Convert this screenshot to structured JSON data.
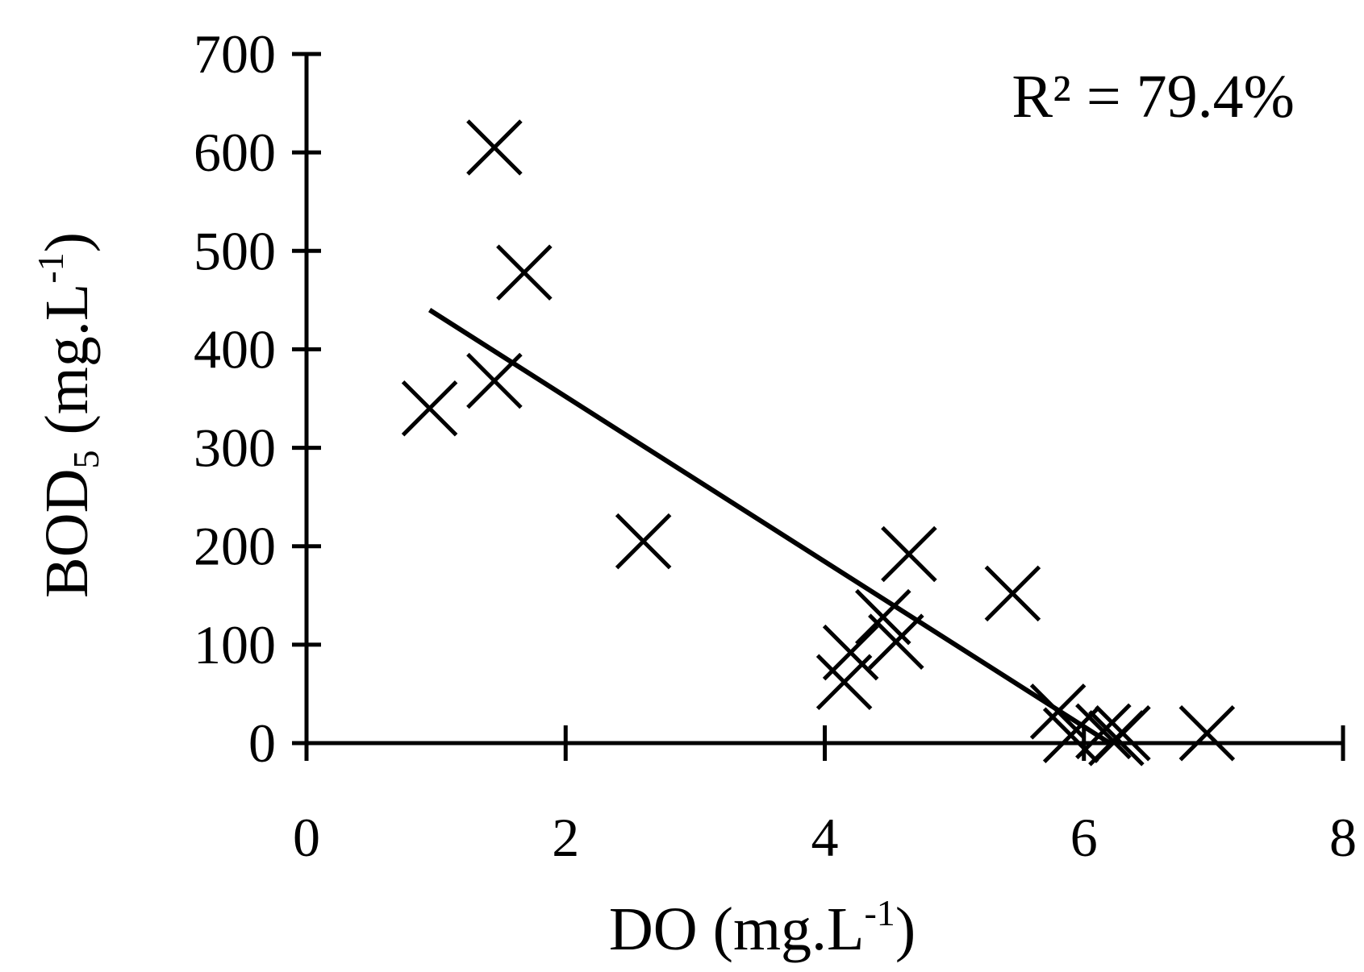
{
  "chart_data": {
    "type": "scatter",
    "xlabel": "DO (mg.L",
    "xlabel_sup": "-1",
    "xlabel_end": ")",
    "ylabel": "BOD",
    "ylabel_sub": "5",
    "ylabel_mid": " (mg.L",
    "ylabel_sup": "-1",
    "ylabel_end": ")",
    "annotation": "R² = 79.4%",
    "xlim": [
      0,
      8
    ],
    "ylim": [
      0,
      700
    ],
    "x_ticks": [
      "0",
      "2",
      "4",
      "6",
      "8"
    ],
    "y_ticks": [
      "0",
      "100",
      "200",
      "300",
      "400",
      "500",
      "600",
      "700"
    ],
    "marker": "x",
    "color": "#000000",
    "grid": false,
    "points": [
      {
        "x": 1.45,
        "y": 605
      },
      {
        "x": 1.68,
        "y": 478
      },
      {
        "x": 1.45,
        "y": 368
      },
      {
        "x": 0.95,
        "y": 340
      },
      {
        "x": 2.6,
        "y": 205
      },
      {
        "x": 4.65,
        "y": 192
      },
      {
        "x": 5.45,
        "y": 152
      },
      {
        "x": 4.45,
        "y": 128
      },
      {
        "x": 4.55,
        "y": 103
      },
      {
        "x": 4.2,
        "y": 92
      },
      {
        "x": 4.15,
        "y": 62
      },
      {
        "x": 5.8,
        "y": 32
      },
      {
        "x": 5.9,
        "y": 8
      },
      {
        "x": 6.15,
        "y": 12
      },
      {
        "x": 6.25,
        "y": 5
      },
      {
        "x": 6.3,
        "y": 10
      },
      {
        "x": 6.95,
        "y": 10
      }
    ],
    "trendline": {
      "x": [
        0.95,
        6.2
      ],
      "y": [
        440,
        0
      ]
    }
  }
}
